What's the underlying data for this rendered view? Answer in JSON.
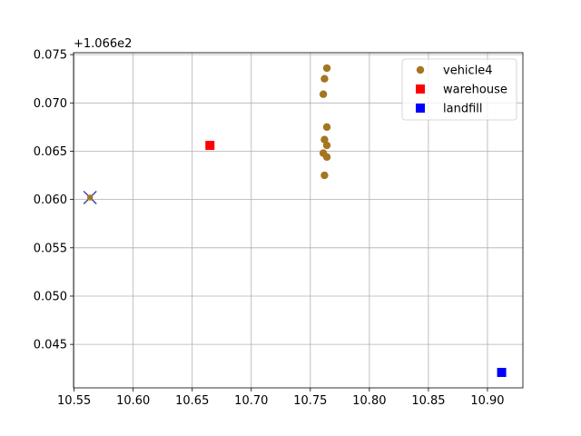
{
  "chart_data": {
    "type": "scatter",
    "title": "",
    "xlabel": "",
    "ylabel": "",
    "y_offset_label": "+1.066e2",
    "xlim": [
      10.5495,
      10.93
    ],
    "ylim": [
      0.0405,
      0.0752
    ],
    "xticks": [
      10.55,
      10.6,
      10.65,
      10.7,
      10.75,
      10.8,
      10.85,
      10.9
    ],
    "xtick_labels": [
      "10.55",
      "10.60",
      "10.65",
      "10.70",
      "10.75",
      "10.80",
      "10.85",
      "10.90"
    ],
    "yticks": [
      0.045,
      0.05,
      0.055,
      0.06,
      0.065,
      0.07,
      0.075
    ],
    "ytick_labels": [
      "0.045",
      "0.050",
      "0.055",
      "0.060",
      "0.065",
      "0.070",
      "0.075"
    ],
    "grid": true,
    "legend_position": "top-right",
    "series": [
      {
        "name": "vehicle4",
        "marker": "circle",
        "color": "#a57520",
        "points": [
          {
            "x": 10.764,
            "y": 0.0736
          },
          {
            "x": 10.762,
            "y": 0.0725
          },
          {
            "x": 10.761,
            "y": 0.0709
          },
          {
            "x": 10.764,
            "y": 0.0675
          },
          {
            "x": 10.762,
            "y": 0.0662
          },
          {
            "x": 10.764,
            "y": 0.0656
          },
          {
            "x": 10.761,
            "y": 0.0648
          },
          {
            "x": 10.764,
            "y": 0.0644
          },
          {
            "x": 10.762,
            "y": 0.0625
          }
        ]
      },
      {
        "name": "warehouse",
        "marker": "square",
        "color": "#ff0000",
        "points": [
          {
            "x": 10.665,
            "y": 0.0656
          }
        ]
      },
      {
        "name": "landfill",
        "marker": "square",
        "color": "#0000ff",
        "points": [
          {
            "x": 10.912,
            "y": 0.0421
          }
        ]
      }
    ],
    "annotations": [
      {
        "kind": "x-marker",
        "color": "#3a3a9a",
        "x": 10.5635,
        "y": 0.0602
      },
      {
        "kind": "point",
        "color": "#a57520",
        "x": 10.5635,
        "y": 0.0602
      }
    ]
  }
}
